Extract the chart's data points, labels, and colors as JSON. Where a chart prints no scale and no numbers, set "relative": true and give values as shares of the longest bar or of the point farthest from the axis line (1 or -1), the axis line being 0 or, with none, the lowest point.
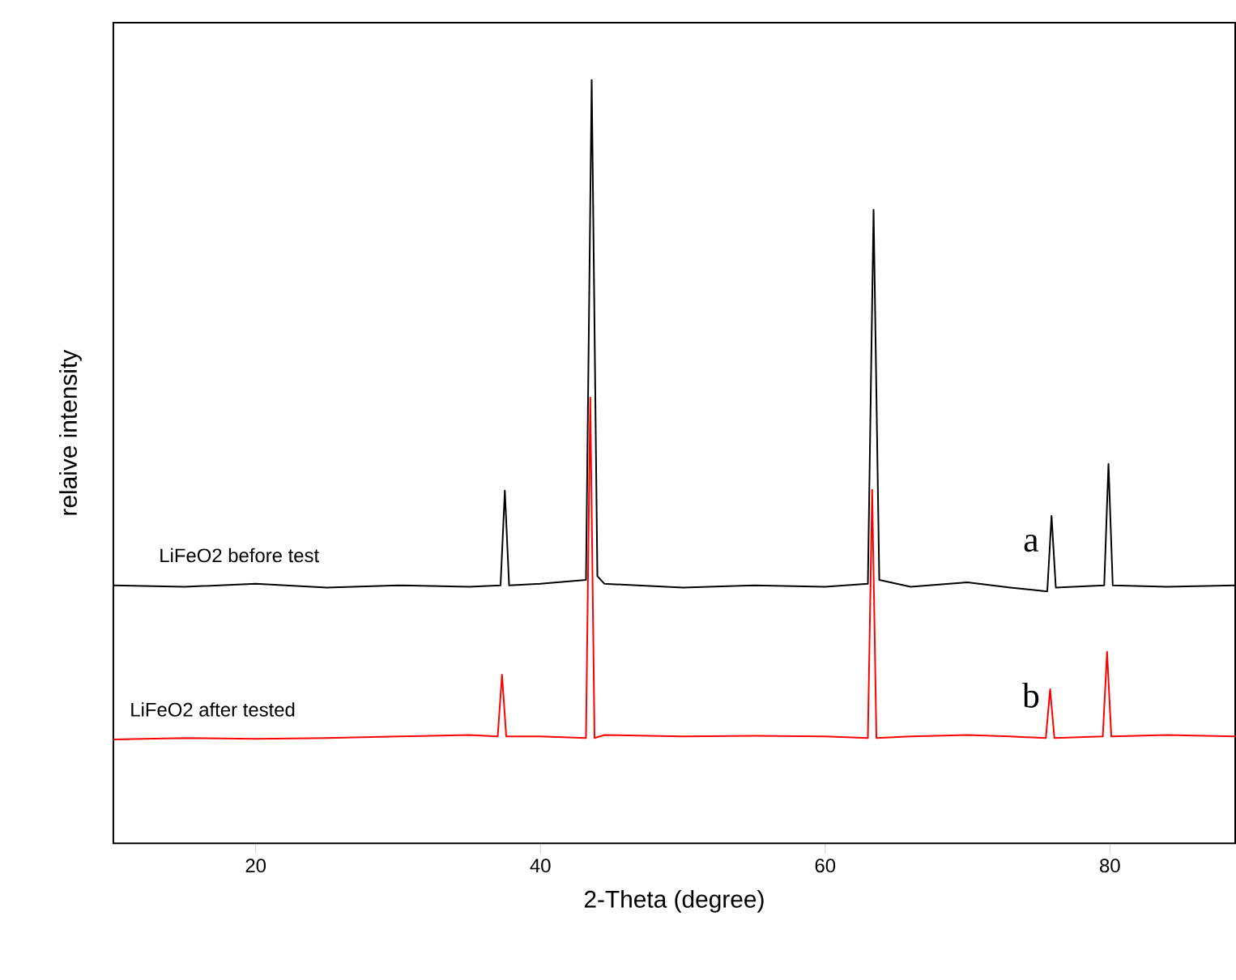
{
  "chart_data": {
    "type": "line",
    "relative": true,
    "xlabel": "2-Theta (degree)",
    "ylabel": "relaive intensity",
    "xlim": [
      10,
      88.8
    ],
    "xticks": [
      20,
      40,
      60,
      80
    ],
    "grid": false,
    "marker": "none",
    "line_style": "solid",
    "series": [
      {
        "name": "LiFeO2 before test",
        "color": "#000000",
        "x": [
          10,
          15,
          20,
          25,
          30,
          35,
          37.2,
          37.5,
          37.8,
          40,
          43.2,
          43.6,
          44.0,
          44.5,
          50,
          55,
          60,
          63.0,
          63.4,
          63.8,
          66,
          70,
          73,
          75.6,
          75.9,
          76.2,
          79.6,
          79.9,
          80.2,
          84,
          88.8
        ],
        "values": [
          0.338,
          0.336,
          0.34,
          0.335,
          0.338,
          0.336,
          0.338,
          0.462,
          0.338,
          0.34,
          0.345,
          1.0,
          0.35,
          0.34,
          0.335,
          0.338,
          0.336,
          0.34,
          0.83,
          0.345,
          0.336,
          0.342,
          0.335,
          0.33,
          0.429,
          0.335,
          0.338,
          0.497,
          0.338,
          0.336,
          0.338
        ]
      },
      {
        "name": "LiFeO2 after tested",
        "color": "#ff0000",
        "x": [
          10,
          15,
          20,
          25,
          30,
          35,
          37.0,
          37.3,
          37.6,
          40,
          43.2,
          43.5,
          43.8,
          44.5,
          50,
          55,
          60,
          63.0,
          63.3,
          63.6,
          66,
          70,
          73,
          75.5,
          75.8,
          76.1,
          79.5,
          79.8,
          80.1,
          84,
          88.8
        ],
        "values": [
          0.136,
          0.138,
          0.137,
          0.138,
          0.14,
          0.142,
          0.14,
          0.221,
          0.14,
          0.14,
          0.138,
          0.584,
          0.138,
          0.142,
          0.14,
          0.141,
          0.14,
          0.138,
          0.463,
          0.138,
          0.14,
          0.142,
          0.14,
          0.138,
          0.202,
          0.138,
          0.14,
          0.251,
          0.14,
          0.142,
          0.14
        ]
      }
    ],
    "annotations": [
      "a",
      "b"
    ]
  }
}
